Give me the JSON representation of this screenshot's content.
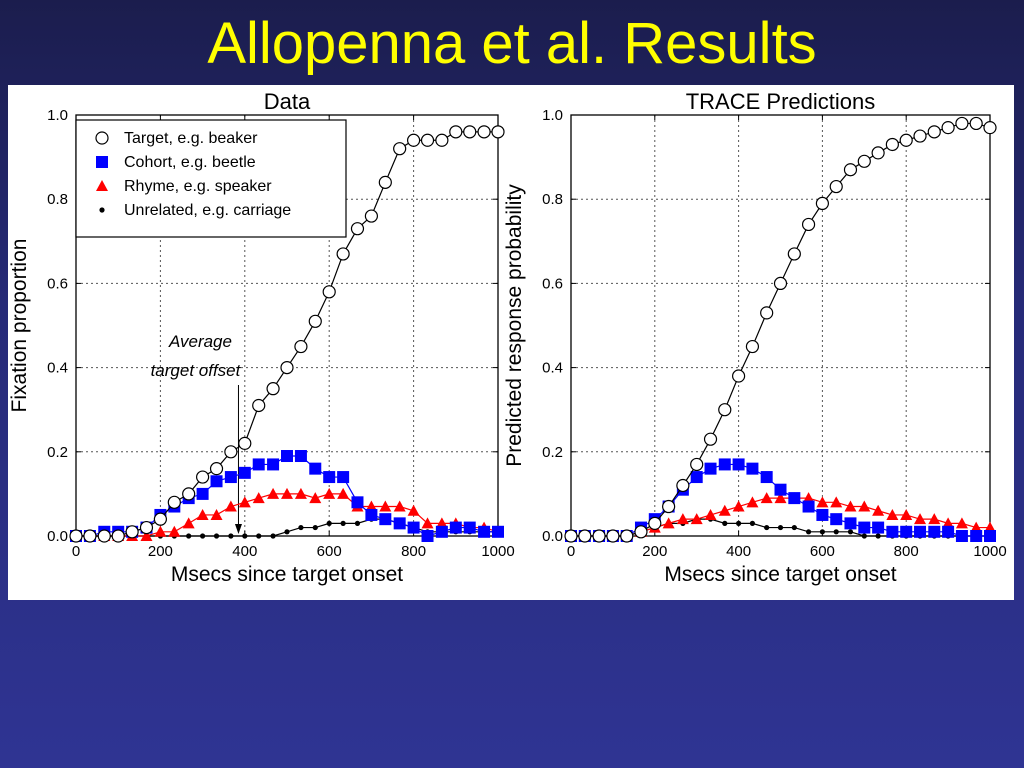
{
  "slide": {
    "title": "Allopenna et al. Results"
  },
  "colors": {
    "background": "#262a78",
    "title": "#ffff00",
    "target": "#000000",
    "cohort": "#0000ff",
    "rhyme": "#ff0000",
    "unrelated": "#000000"
  },
  "chart_data": [
    {
      "type": "line",
      "title": "Data",
      "xlabel": "Msecs since target onset",
      "ylabel": "Fixation proportion",
      "xlim": [
        0,
        1000
      ],
      "ylim": [
        0,
        1
      ],
      "xticks": [
        "0",
        "200",
        "400",
        "600",
        "800",
        "1000"
      ],
      "yticks": [
        "0.0",
        "0.2",
        "0.4",
        "0.6",
        "0.8",
        "1.0"
      ],
      "grid": true,
      "legend_position": "top-left",
      "annotation": {
        "lines": [
          "Average",
          "target offset"
        ],
        "x": 385
      },
      "series": [
        {
          "name": "Target, e.g. beaker",
          "marker": "open-circle",
          "x": [
            0,
            33,
            67,
            100,
            133,
            167,
            200,
            233,
            267,
            300,
            333,
            367,
            400,
            433,
            467,
            500,
            533,
            567,
            600,
            633,
            667,
            700,
            733,
            767,
            800,
            833,
            867,
            900,
            933,
            967,
            1000
          ],
          "y": [
            0,
            0,
            0,
            0,
            0.01,
            0.02,
            0.04,
            0.08,
            0.1,
            0.14,
            0.16,
            0.2,
            0.22,
            0.31,
            0.35,
            0.4,
            0.45,
            0.51,
            0.58,
            0.67,
            0.73,
            0.76,
            0.84,
            0.92,
            0.94,
            0.94,
            0.94,
            0.96,
            0.96,
            0.96,
            0.96
          ]
        },
        {
          "name": "Cohort, e.g. beetle",
          "marker": "square",
          "x": [
            0,
            33,
            67,
            100,
            133,
            167,
            200,
            233,
            267,
            300,
            333,
            367,
            400,
            433,
            467,
            500,
            533,
            567,
            600,
            633,
            667,
            700,
            733,
            767,
            800,
            833,
            867,
            900,
            933,
            967,
            1000
          ],
          "y": [
            0,
            0,
            0.01,
            0.01,
            0.01,
            0.02,
            0.05,
            0.07,
            0.09,
            0.1,
            0.13,
            0.14,
            0.15,
            0.17,
            0.17,
            0.19,
            0.19,
            0.16,
            0.14,
            0.14,
            0.08,
            0.05,
            0.04,
            0.03,
            0.02,
            0,
            0.01,
            0.02,
            0.02,
            0.01,
            0.01
          ]
        },
        {
          "name": "Rhyme, e.g. speaker",
          "marker": "triangle",
          "x": [
            0,
            33,
            67,
            100,
            133,
            167,
            200,
            233,
            267,
            300,
            333,
            367,
            400,
            433,
            467,
            500,
            533,
            567,
            600,
            633,
            667,
            700,
            733,
            767,
            800,
            833,
            867,
            900,
            933,
            967,
            1000
          ],
          "y": [
            0,
            0,
            0,
            0,
            0,
            0,
            0.01,
            0.01,
            0.03,
            0.05,
            0.05,
            0.07,
            0.08,
            0.09,
            0.1,
            0.1,
            0.1,
            0.09,
            0.1,
            0.1,
            0.07,
            0.07,
            0.07,
            0.07,
            0.06,
            0.03,
            0.03,
            0.03,
            0.02,
            0.02,
            0.01
          ]
        },
        {
          "name": "Unrelated, e.g. carriage",
          "marker": "dot",
          "x": [
            0,
            33,
            67,
            100,
            133,
            167,
            200,
            233,
            267,
            300,
            333,
            367,
            400,
            433,
            467,
            500,
            533,
            567,
            600,
            633,
            667,
            700,
            733,
            767,
            800,
            833,
            867,
            900,
            933,
            967,
            1000
          ],
          "y": [
            0,
            0,
            0,
            0,
            0,
            0,
            0,
            0,
            0,
            0,
            0,
            0,
            0,
            0,
            0,
            0.01,
            0.02,
            0.02,
            0.03,
            0.03,
            0.03,
            0.04,
            0.04,
            0.03,
            0.02,
            0.01,
            0.01,
            0.01,
            0.01,
            0.01,
            0.01
          ]
        }
      ]
    },
    {
      "type": "line",
      "title": "TRACE Predictions",
      "xlabel": "Msecs since target onset",
      "ylabel": "Predicted response probability",
      "xlim": [
        0,
        1000
      ],
      "ylim": [
        0,
        1
      ],
      "xticks": [
        "0",
        "200",
        "400",
        "600",
        "800",
        "1000"
      ],
      "yticks": [
        "0.0",
        "0.2",
        "0.4",
        "0.6",
        "0.8",
        "1.0"
      ],
      "grid": true,
      "series": [
        {
          "name": "Target, e.g. beaker",
          "marker": "open-circle",
          "x": [
            0,
            33,
            67,
            100,
            133,
            167,
            200,
            233,
            267,
            300,
            333,
            367,
            400,
            433,
            467,
            500,
            533,
            567,
            600,
            633,
            667,
            700,
            733,
            767,
            800,
            833,
            867,
            900,
            933,
            967,
            1000
          ],
          "y": [
            0,
            0,
            0,
            0,
            0,
            0.01,
            0.03,
            0.07,
            0.12,
            0.17,
            0.23,
            0.3,
            0.38,
            0.45,
            0.53,
            0.6,
            0.67,
            0.74,
            0.79,
            0.83,
            0.87,
            0.89,
            0.91,
            0.93,
            0.94,
            0.95,
            0.96,
            0.97,
            0.98,
            0.98,
            0.97
          ]
        },
        {
          "name": "Cohort, e.g. beetle",
          "marker": "square",
          "x": [
            0,
            33,
            67,
            100,
            133,
            167,
            200,
            233,
            267,
            300,
            333,
            367,
            400,
            433,
            467,
            500,
            533,
            567,
            600,
            633,
            667,
            700,
            733,
            767,
            800,
            833,
            867,
            900,
            933,
            967,
            1000
          ],
          "y": [
            0,
            0,
            0,
            0,
            0,
            0.02,
            0.04,
            0.07,
            0.11,
            0.14,
            0.16,
            0.17,
            0.17,
            0.16,
            0.14,
            0.11,
            0.09,
            0.07,
            0.05,
            0.04,
            0.03,
            0.02,
            0.02,
            0.01,
            0.01,
            0.01,
            0.01,
            0.01,
            0,
            0,
            0
          ]
        },
        {
          "name": "Rhyme, e.g. speaker",
          "marker": "triangle",
          "x": [
            0,
            33,
            67,
            100,
            133,
            167,
            200,
            233,
            267,
            300,
            333,
            367,
            400,
            433,
            467,
            500,
            533,
            567,
            600,
            633,
            667,
            700,
            733,
            767,
            800,
            833,
            867,
            900,
            933,
            967,
            1000
          ],
          "y": [
            0,
            0,
            0,
            0,
            0,
            0.01,
            0.02,
            0.03,
            0.04,
            0.04,
            0.05,
            0.06,
            0.07,
            0.08,
            0.09,
            0.09,
            0.09,
            0.09,
            0.08,
            0.08,
            0.07,
            0.07,
            0.06,
            0.05,
            0.05,
            0.04,
            0.04,
            0.03,
            0.03,
            0.02,
            0.02
          ]
        },
        {
          "name": "Unrelated, e.g. carriage",
          "marker": "dot",
          "x": [
            0,
            33,
            67,
            100,
            133,
            167,
            200,
            233,
            267,
            300,
            333,
            367,
            400,
            433,
            467,
            500,
            533,
            567,
            600,
            633,
            667,
            700,
            733,
            767,
            800,
            833,
            867,
            900,
            933,
            967,
            1000
          ],
          "y": [
            0,
            0,
            0,
            0,
            0,
            0.01,
            0.02,
            0.03,
            0.03,
            0.04,
            0.04,
            0.03,
            0.03,
            0.03,
            0.02,
            0.02,
            0.02,
            0.01,
            0.01,
            0.01,
            0.01,
            0,
            0,
            0,
            0,
            0,
            0,
            0,
            0,
            0,
            0
          ]
        }
      ]
    }
  ]
}
